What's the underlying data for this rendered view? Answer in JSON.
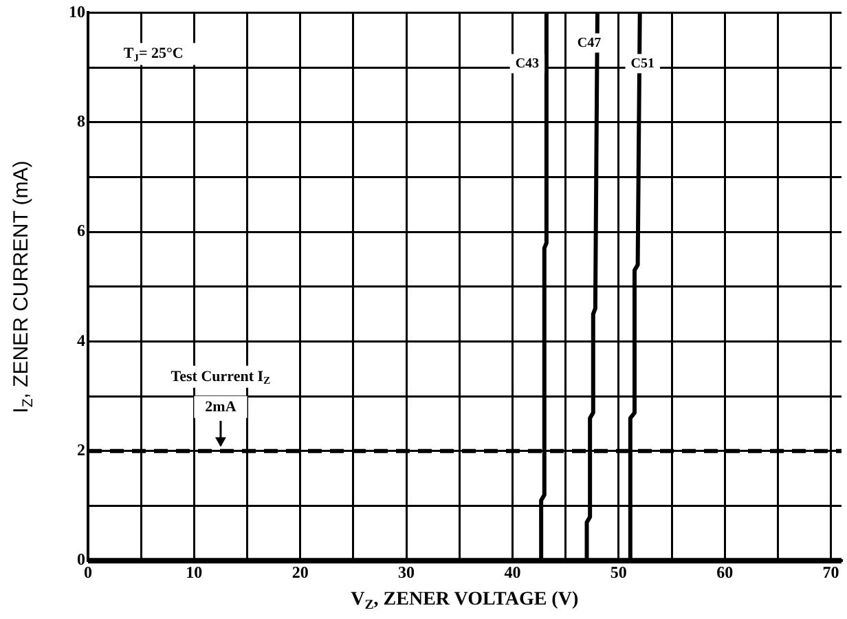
{
  "chart_data": {
    "type": "line",
    "xlabel": "V$_{Z}$, ZENER VOLTAGE (V)",
    "ylabel": "I$_{Z}$, ZENER CURRENT (mA)",
    "xlim": [
      0,
      71
    ],
    "xticks": [
      0,
      {
        "value": 5,
        "label": null
      },
      10,
      {
        "value": 15,
        "label": null
      },
      20,
      {
        "value": 25,
        "label": null
      },
      30,
      {
        "value": 35,
        "label": null
      },
      40,
      {
        "value": 45,
        "label": null
      },
      50,
      {
        "value": 55,
        "label": null
      },
      60,
      {
        "value": 65,
        "label": null
      },
      70
    ],
    "ylim": [
      0,
      10
    ],
    "yticks": [
      0,
      {
        "value": 1,
        "label": null
      },
      2,
      {
        "value": 3,
        "label": null
      },
      4,
      {
        "value": 5,
        "label": null
      },
      6,
      {
        "value": 7,
        "label": null
      },
      8,
      {
        "value": 9,
        "label": null
      },
      10
    ],
    "grid": true,
    "legend": false,
    "marker": "none",
    "line_style": "solid",
    "series": [
      {
        "name": "C43",
        "color": "#000000",
        "x": [
          42.7,
          42.7,
          43.0,
          43.0,
          43.2,
          43.2
        ],
        "values": [
          0,
          1.1,
          1.2,
          5.7,
          5.8,
          10
        ]
      },
      {
        "name": "C47",
        "color": "#000000",
        "x": [
          47.0,
          47.0,
          47.3,
          47.3,
          47.6,
          47.6,
          47.8,
          48.0
        ],
        "values": [
          0,
          0.7,
          0.8,
          2.6,
          2.7,
          4.5,
          4.6,
          10
        ]
      },
      {
        "name": "C51",
        "color": "#000000",
        "x": [
          51.1,
          51.1,
          51.5,
          51.5,
          51.8,
          52.0
        ],
        "values": [
          0,
          2.6,
          2.7,
          5.3,
          5.4,
          10
        ]
      }
    ],
    "ref_lines": [
      {
        "axis": "y",
        "value": 2,
        "color": "#000000",
        "line_style": "dashed"
      }
    ],
    "annotations": [
      "T$_{J}$= 25°C",
      "Test Current I$_{Z}$",
      {
        "text": "2mA",
        "x": 12.5,
        "y": 2
      }
    ]
  }
}
